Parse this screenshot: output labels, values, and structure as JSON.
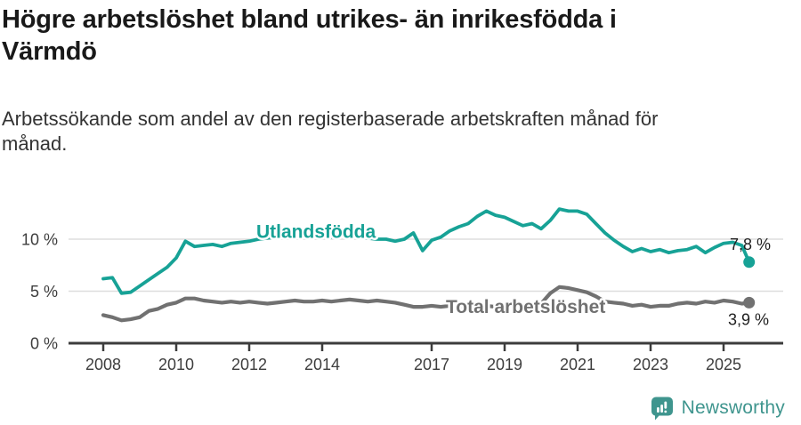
{
  "header": {
    "title": "Högre arbetslöshet bland utrikes- än inrikesfödda i\nVärmdö",
    "subtitle": "Arbetssökande som andel av den registerbaserade arbetskraften månad för\nmånad."
  },
  "colors": {
    "utlandsfodda_line": "#17a296",
    "total_line": "#717171",
    "gridline": "#dedede",
    "axis": "#3c3c3c",
    "tick_label": "#3d3d3d",
    "value_label": "#1f1f1f",
    "brand_teal": "#3f958e",
    "background": "#ffffff"
  },
  "chart_data": {
    "type": "line",
    "title": "Högre arbetslöshet bland utrikes- än inrikesfödda i Värmdö",
    "subtitle": "Arbetssökande som andel av den registerbaserade arbetskraften månad för månad.",
    "xlabel": "",
    "ylabel": "",
    "x_unit": "decimal_year",
    "y_unit": "percent",
    "grid": "horizontal-only",
    "legend": "inline-series-labels",
    "ylim": [
      0,
      15
    ],
    "xlim": [
      2007.1,
      2026.6
    ],
    "x": [
      2008.0,
      2008.25,
      2008.5,
      2008.75,
      2009.0,
      2009.25,
      2009.5,
      2009.75,
      2010.0,
      2010.25,
      2010.5,
      2010.75,
      2011.0,
      2011.25,
      2011.5,
      2011.75,
      2012.0,
      2012.25,
      2012.5,
      2012.75,
      2013.0,
      2013.25,
      2013.5,
      2013.75,
      2014.0,
      2014.25,
      2014.5,
      2014.75,
      2015.0,
      2015.25,
      2015.5,
      2015.75,
      2016.0,
      2016.25,
      2016.5,
      2016.75,
      2017.0,
      2017.25,
      2017.5,
      2017.75,
      2018.0,
      2018.25,
      2018.5,
      2018.75,
      2019.0,
      2019.25,
      2019.5,
      2019.75,
      2020.0,
      2020.25,
      2020.5,
      2020.75,
      2021.0,
      2021.25,
      2021.5,
      2021.75,
      2022.0,
      2022.25,
      2022.5,
      2022.75,
      2023.0,
      2023.25,
      2023.5,
      2023.75,
      2024.0,
      2024.25,
      2024.5,
      2024.75,
      2025.0,
      2025.25,
      2025.5,
      2025.7
    ],
    "series": [
      {
        "name": "Utlandsfödda",
        "color": "#17a296",
        "end_label": "7,8 %",
        "end_value": 7.8,
        "values": [
          6.2,
          6.3,
          4.8,
          4.9,
          5.5,
          6.1,
          6.7,
          7.3,
          8.2,
          9.8,
          9.3,
          9.4,
          9.5,
          9.3,
          9.6,
          9.7,
          9.8,
          10.0,
          10.1,
          10.2,
          10.2,
          10.4,
          10.3,
          10.2,
          10.3,
          10.2,
          10.4,
          10.3,
          10.2,
          10.1,
          10.0,
          10.0,
          9.8,
          10.0,
          10.6,
          8.9,
          9.9,
          10.2,
          10.8,
          11.2,
          11.5,
          12.2,
          12.7,
          12.3,
          12.1,
          11.7,
          11.3,
          11.5,
          11.0,
          11.8,
          12.9,
          12.7,
          12.7,
          12.4,
          11.5,
          10.6,
          9.9,
          9.3,
          8.8,
          9.1,
          8.8,
          9.0,
          8.7,
          8.9,
          9.0,
          9.3,
          8.7,
          9.2,
          9.6,
          9.7,
          9.4,
          7.8
        ]
      },
      {
        "name": "Total arbetslöshet",
        "color": "#717171",
        "end_label": "3,9 %",
        "end_value": 3.9,
        "values": [
          2.7,
          2.5,
          2.2,
          2.3,
          2.5,
          3.1,
          3.3,
          3.7,
          3.9,
          4.3,
          4.3,
          4.1,
          4.0,
          3.9,
          4.0,
          3.9,
          4.0,
          3.9,
          3.8,
          3.9,
          4.0,
          4.1,
          4.0,
          4.0,
          4.1,
          4.0,
          4.1,
          4.2,
          4.1,
          4.0,
          4.1,
          4.0,
          3.9,
          3.7,
          3.5,
          3.5,
          3.6,
          3.5,
          3.6,
          3.5,
          3.6,
          3.5,
          3.6,
          3.5,
          3.6,
          3.7,
          3.6,
          3.7,
          3.8,
          4.8,
          5.4,
          5.3,
          5.1,
          4.9,
          4.5,
          4.0,
          3.9,
          3.8,
          3.6,
          3.7,
          3.5,
          3.6,
          3.6,
          3.8,
          3.9,
          3.8,
          4.0,
          3.9,
          4.1,
          4.0,
          3.8,
          3.9
        ]
      }
    ],
    "yticks": [
      {
        "value": 0,
        "label": "0 %"
      },
      {
        "value": 5,
        "label": "5 %"
      },
      {
        "value": 10,
        "label": "10 %"
      }
    ],
    "xticks": [
      {
        "value": 2008,
        "label": "2008"
      },
      {
        "value": 2010,
        "label": "2010"
      },
      {
        "value": 2012,
        "label": "2012"
      },
      {
        "value": 2014,
        "label": "2014"
      },
      {
        "value": 2017,
        "label": "2017"
      },
      {
        "value": 2019,
        "label": "2019"
      },
      {
        "value": 2021,
        "label": "2021"
      },
      {
        "value": 2023,
        "label": "2023"
      },
      {
        "value": 2025,
        "label": "2025"
      }
    ]
  },
  "footer": {
    "brand": "Newsworthy",
    "logo_icon": "newsworthy-speech-bubble-bar-chart-icon"
  }
}
